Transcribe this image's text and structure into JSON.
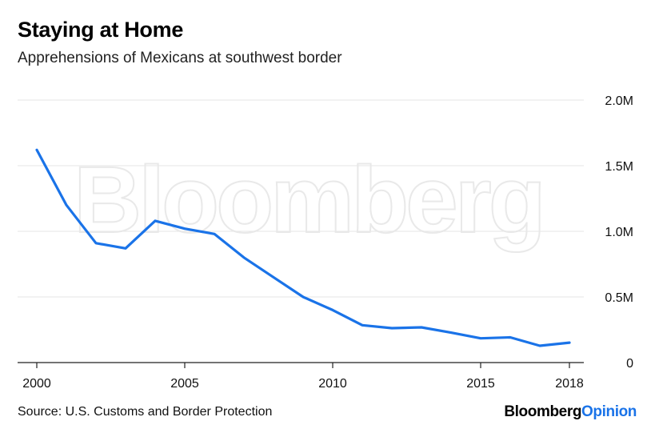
{
  "header": {
    "title": "Staying at Home",
    "subtitle": "Apprehensions of Mexicans at southwest border"
  },
  "footer": {
    "source": "Source: U.S. Customs and Border Protection",
    "brand_main": "Bloomberg",
    "brand_accent": "Opinion"
  },
  "watermark": "Bloomberg",
  "colors": {
    "line": "#1a73e8",
    "brand_accent": "#1a73e8",
    "grid": "#e6e6e6"
  },
  "chart_data": {
    "type": "line",
    "title": "Staying at Home",
    "subtitle": "Apprehensions of Mexicans at southwest border",
    "xlabel": "",
    "ylabel": "",
    "xlim": [
      2000,
      2018
    ],
    "ylim": [
      0,
      2000000
    ],
    "x_ticks": [
      2000,
      2005,
      2010,
      2015,
      2018
    ],
    "y_ticks": [
      0,
      500000,
      1000000,
      1500000,
      2000000
    ],
    "y_tick_labels": [
      "0",
      "0.5M",
      "1.0M",
      "1.5M",
      "2.0M"
    ],
    "grid": true,
    "y_axis_side": "right",
    "series": [
      {
        "x": [
          2000,
          2001,
          2002,
          2003,
          2004,
          2005,
          2006,
          2007,
          2008,
          2009,
          2010,
          2011,
          2012,
          2013,
          2014,
          2015,
          2016,
          2017,
          2018
        ],
        "values": [
          1620000,
          1200000,
          910000,
          870000,
          1080000,
          1020000,
          980000,
          800000,
          650000,
          500000,
          400000,
          285000,
          262000,
          268000,
          228000,
          185000,
          192000,
          128000,
          152000
        ]
      }
    ]
  }
}
